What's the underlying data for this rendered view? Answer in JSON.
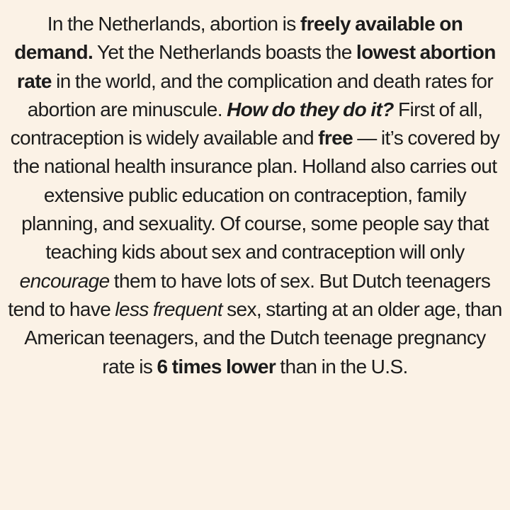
{
  "document": {
    "segments": [
      {
        "style": "normal",
        "text": "In the Netherlands, abortion is "
      },
      {
        "style": "bold",
        "text": "freely available on demand."
      },
      {
        "style": "normal",
        "text": " Yet the Netherlands boasts the "
      },
      {
        "style": "bold",
        "text": "lowest abortion rate"
      },
      {
        "style": "normal",
        "text": " in the world, and the complication and death rates for abortion are minuscule. "
      },
      {
        "style": "bold-italic",
        "text": "How do they do it?"
      },
      {
        "style": "normal",
        "text": " First of all, contraception is widely available and "
      },
      {
        "style": "bold",
        "text": "free"
      },
      {
        "style": "normal",
        "text": " — it’s covered by the national health insurance plan. Holland also carries out extensive public education on contraception, family planning, and sexuality. Of course, some people say that teaching kids about sex and contraception will only "
      },
      {
        "style": "italic",
        "text": "encourage"
      },
      {
        "style": "normal",
        "text": " them to have lots of sex. But Dutch teenagers tend to have "
      },
      {
        "style": "italic",
        "text": "less frequent"
      },
      {
        "style": "normal",
        "text": " sex, starting at an older age, than American teenagers, and the Dutch teenage pregnancy rate is "
      },
      {
        "style": "bold",
        "text": "6 times lower"
      },
      {
        "style": "normal",
        "text": " than in the U.S."
      }
    ]
  },
  "colors": {
    "background": "#fbf2e6",
    "text": "#1c1c1c"
  }
}
